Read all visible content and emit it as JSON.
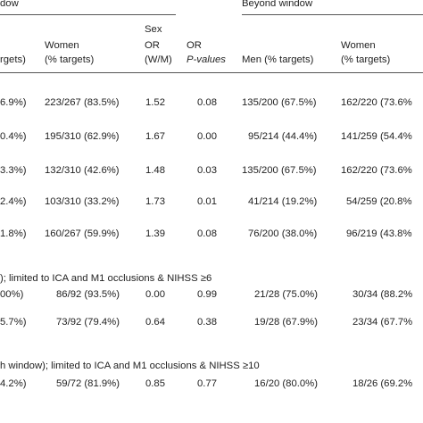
{
  "header": {
    "group_left": "dow",
    "group_right": "Beyond window",
    "col_men_left_partial": "rgets)",
    "col_women_left": [
      "Women",
      "(% targets)"
    ],
    "col_sex_or": [
      "Sex",
      "OR",
      "(W/M)"
    ],
    "col_or_p": [
      "OR",
      "P-values"
    ],
    "col_men_right": "Men (% targets)",
    "col_women_right": [
      "Women",
      "(% targets)"
    ]
  },
  "rows": [
    {
      "men_left": "6.9%)",
      "women_left": "223/267 (83.5%)",
      "sex_or": "1.52",
      "or_p": "0.08",
      "men_right": "135/200 (67.5%)",
      "women_right": "162/220 (73.6%"
    },
    {
      "men_left": "0.4%)",
      "women_left": "195/310 (62.9%)",
      "sex_or": "1.67",
      "or_p": "0.00",
      "men_right": "95/214 (44.4%)",
      "women_right": "141/259 (54.4%"
    },
    {
      "men_left": "3.3%)",
      "women_left": "132/310 (42.6%)",
      "sex_or": "1.48",
      "or_p": "0.03",
      "men_right": "135/200 (67.5%)",
      "women_right": "162/220 (73.6%"
    },
    {
      "men_left": "2.4%)",
      "women_left": "103/310 (33.2%)",
      "sex_or": "1.73",
      "or_p": "0.01",
      "men_right": "41/214 (19.2%)",
      "women_right": "54/259 (20.8%"
    },
    {
      "men_left": "1.8%)",
      "women_left": "160/267 (59.9%)",
      "sex_or": "1.39",
      "or_p": "0.08",
      "men_right": "76/200 (38.0%)",
      "women_right": "96/219 (43.8%"
    }
  ],
  "section1": {
    "caption": "); limited to ICA and M1 occlusions & NIHSS ≥6",
    "rows": [
      {
        "men_left": "00%)",
        "women_left": "86/92 (93.5%)",
        "sex_or": "0.00",
        "or_p": "0.99",
        "men_right": "21/28 (75.0%)",
        "women_right": "30/34 (88.2%"
      },
      {
        "men_left": "5.7%)",
        "women_left": "73/92 (79.4%)",
        "sex_or": "0.64",
        "or_p": "0.38",
        "men_right": "19/28 (67.9%)",
        "women_right": "23/34 (67.7%"
      }
    ]
  },
  "section2": {
    "caption": "h window); limited to ICA and M1 occlusions & NIHSS ≥10",
    "rows": [
      {
        "men_left": "4.2%)",
        "women_left": "59/72 (81.9%)",
        "sex_or": "0.85",
        "or_p": "0.77",
        "men_right": "16/20 (80.0%)",
        "women_right": "18/26 (69.2%"
      }
    ]
  }
}
